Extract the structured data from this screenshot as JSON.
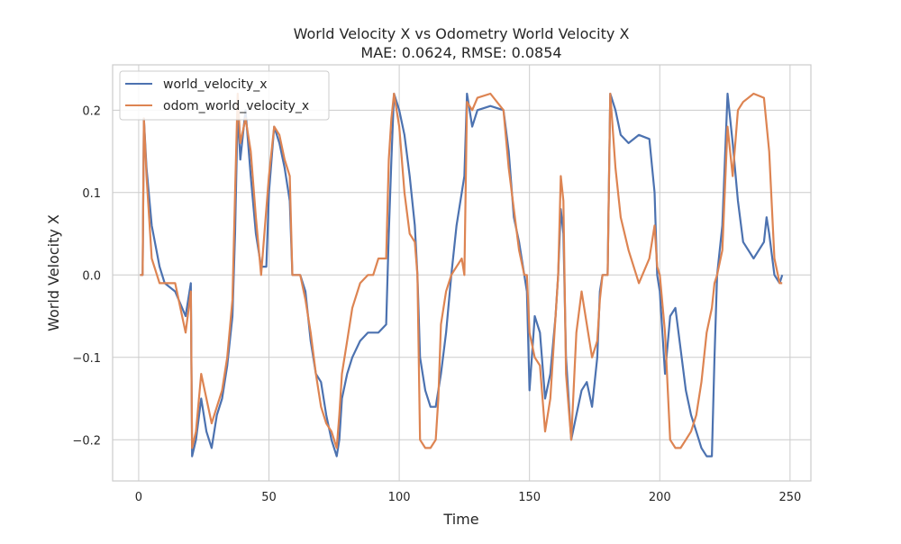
{
  "chart_data": {
    "type": "line",
    "title": "World Velocity X vs Odometry World Velocity X",
    "subtitle": "MAE: 0.0624, RMSE: 0.0854",
    "xlabel": "Time",
    "ylabel": "World Velocity X",
    "xlim": [
      -10,
      258
    ],
    "ylim": [
      -0.25,
      0.255
    ],
    "xticks": [
      0,
      50,
      100,
      150,
      200,
      250
    ],
    "xtick_labels": [
      "0",
      "50",
      "100",
      "150",
      "200",
      "250"
    ],
    "yticks": [
      -0.2,
      -0.1,
      0.0,
      0.1,
      0.2
    ],
    "ytick_labels": [
      "−0.2",
      "−0.1",
      "0.0",
      "0.1",
      "0.2"
    ],
    "grid": true,
    "legend_position": "top-left",
    "series": [
      {
        "name": "world_velocity_x",
        "color": "#4c72b0",
        "points": [
          [
            0.5,
            0.0
          ],
          [
            1.5,
            0.0
          ],
          [
            2,
            0.19
          ],
          [
            3,
            0.13
          ],
          [
            5,
            0.06
          ],
          [
            8,
            0.01
          ],
          [
            10,
            -0.01
          ],
          [
            14,
            -0.02
          ],
          [
            18,
            -0.05
          ],
          [
            20,
            -0.01
          ],
          [
            20.5,
            -0.22
          ],
          [
            22,
            -0.2
          ],
          [
            24,
            -0.15
          ],
          [
            26,
            -0.19
          ],
          [
            28,
            -0.21
          ],
          [
            30,
            -0.17
          ],
          [
            32,
            -0.15
          ],
          [
            34,
            -0.11
          ],
          [
            36,
            -0.05
          ],
          [
            37,
            0.05
          ],
          [
            38,
            0.2
          ],
          [
            39,
            0.14
          ],
          [
            41,
            0.2
          ],
          [
            43,
            0.12
          ],
          [
            45,
            0.05
          ],
          [
            47,
            0.01
          ],
          [
            49,
            0.01
          ],
          [
            50,
            0.1
          ],
          [
            52,
            0.18
          ],
          [
            54,
            0.16
          ],
          [
            56,
            0.13
          ],
          [
            58,
            0.09
          ],
          [
            59,
            0.0
          ],
          [
            62,
            0.0
          ],
          [
            64,
            -0.02
          ],
          [
            66,
            -0.08
          ],
          [
            68,
            -0.12
          ],
          [
            70,
            -0.13
          ],
          [
            72,
            -0.17
          ],
          [
            74,
            -0.2
          ],
          [
            76,
            -0.22
          ],
          [
            77,
            -0.2
          ],
          [
            78,
            -0.15
          ],
          [
            80,
            -0.12
          ],
          [
            82,
            -0.1
          ],
          [
            85,
            -0.08
          ],
          [
            88,
            -0.07
          ],
          [
            92,
            -0.07
          ],
          [
            95,
            -0.06
          ],
          [
            96,
            0.05
          ],
          [
            97,
            0.14
          ],
          [
            98,
            0.22
          ],
          [
            100,
            0.2
          ],
          [
            102,
            0.17
          ],
          [
            104,
            0.12
          ],
          [
            106,
            0.06
          ],
          [
            107,
            0.0
          ],
          [
            108,
            -0.1
          ],
          [
            110,
            -0.14
          ],
          [
            112,
            -0.16
          ],
          [
            114,
            -0.16
          ],
          [
            116,
            -0.12
          ],
          [
            118,
            -0.07
          ],
          [
            120,
            0.0
          ],
          [
            122,
            0.06
          ],
          [
            124,
            0.1
          ],
          [
            125,
            0.12
          ],
          [
            126,
            0.22
          ],
          [
            128,
            0.18
          ],
          [
            130,
            0.2
          ],
          [
            135,
            0.205
          ],
          [
            140,
            0.2
          ],
          [
            142,
            0.15
          ],
          [
            144,
            0.07
          ],
          [
            146,
            0.04
          ],
          [
            148,
            0.0
          ],
          [
            149,
            -0.02
          ],
          [
            150,
            -0.14
          ],
          [
            152,
            -0.05
          ],
          [
            154,
            -0.07
          ],
          [
            156,
            -0.15
          ],
          [
            158,
            -0.12
          ],
          [
            160,
            -0.05
          ],
          [
            161,
            0.0
          ],
          [
            162,
            0.08
          ],
          [
            163,
            0.05
          ],
          [
            164,
            -0.1
          ],
          [
            166,
            -0.2
          ],
          [
            168,
            -0.17
          ],
          [
            170,
            -0.14
          ],
          [
            172,
            -0.13
          ],
          [
            174,
            -0.16
          ],
          [
            176,
            -0.1
          ],
          [
            177,
            -0.02
          ],
          [
            178,
            0.0
          ],
          [
            180,
            0.0
          ],
          [
            181,
            0.22
          ],
          [
            183,
            0.2
          ],
          [
            185,
            0.17
          ],
          [
            188,
            0.16
          ],
          [
            192,
            0.17
          ],
          [
            196,
            0.165
          ],
          [
            198,
            0.1
          ],
          [
            199,
            0.0
          ],
          [
            200,
            -0.02
          ],
          [
            202,
            -0.12
          ],
          [
            204,
            -0.05
          ],
          [
            206,
            -0.04
          ],
          [
            208,
            -0.09
          ],
          [
            210,
            -0.14
          ],
          [
            212,
            -0.17
          ],
          [
            214,
            -0.19
          ],
          [
            216,
            -0.21
          ],
          [
            218,
            -0.22
          ],
          [
            220,
            -0.22
          ],
          [
            221,
            -0.1
          ],
          [
            222,
            0.0
          ],
          [
            224,
            0.06
          ],
          [
            226,
            0.22
          ],
          [
            228,
            0.16
          ],
          [
            230,
            0.09
          ],
          [
            232,
            0.04
          ],
          [
            234,
            0.03
          ],
          [
            236,
            0.02
          ],
          [
            238,
            0.03
          ],
          [
            240,
            0.04
          ],
          [
            241,
            0.07
          ],
          [
            242,
            0.05
          ],
          [
            244,
            0.0
          ],
          [
            246,
            -0.01
          ],
          [
            247,
            0.0
          ]
        ]
      },
      {
        "name": "odom_world_velocity_x",
        "color": "#dd8452",
        "points": [
          [
            0.5,
            0.0
          ],
          [
            1.5,
            0.0
          ],
          [
            2,
            0.19
          ],
          [
            3,
            0.12
          ],
          [
            5,
            0.02
          ],
          [
            8,
            -0.01
          ],
          [
            10,
            -0.01
          ],
          [
            14,
            -0.01
          ],
          [
            18,
            -0.07
          ],
          [
            20,
            -0.02
          ],
          [
            20.5,
            -0.21
          ],
          [
            22,
            -0.19
          ],
          [
            24,
            -0.12
          ],
          [
            26,
            -0.15
          ],
          [
            28,
            -0.18
          ],
          [
            30,
            -0.16
          ],
          [
            32,
            -0.14
          ],
          [
            34,
            -0.1
          ],
          [
            36,
            -0.03
          ],
          [
            37,
            0.1
          ],
          [
            38,
            0.22
          ],
          [
            39,
            0.16
          ],
          [
            41,
            0.19
          ],
          [
            43,
            0.15
          ],
          [
            45,
            0.07
          ],
          [
            47,
            0.0
          ],
          [
            50,
            0.12
          ],
          [
            52,
            0.18
          ],
          [
            54,
            0.17
          ],
          [
            56,
            0.14
          ],
          [
            58,
            0.12
          ],
          [
            59,
            0.0
          ],
          [
            62,
            0.0
          ],
          [
            64,
            -0.03
          ],
          [
            66,
            -0.07
          ],
          [
            68,
            -0.12
          ],
          [
            70,
            -0.16
          ],
          [
            72,
            -0.18
          ],
          [
            74,
            -0.19
          ],
          [
            76,
            -0.21
          ],
          [
            77,
            -0.17
          ],
          [
            78,
            -0.12
          ],
          [
            80,
            -0.08
          ],
          [
            82,
            -0.04
          ],
          [
            85,
            -0.01
          ],
          [
            88,
            0.0
          ],
          [
            90,
            0.0
          ],
          [
            92,
            0.02
          ],
          [
            95,
            0.02
          ],
          [
            96,
            0.14
          ],
          [
            97,
            0.19
          ],
          [
            98,
            0.22
          ],
          [
            100,
            0.18
          ],
          [
            102,
            0.1
          ],
          [
            104,
            0.05
          ],
          [
            106,
            0.04
          ],
          [
            107,
            0.0
          ],
          [
            108,
            -0.2
          ],
          [
            110,
            -0.21
          ],
          [
            112,
            -0.21
          ],
          [
            114,
            -0.2
          ],
          [
            115,
            -0.15
          ],
          [
            116,
            -0.06
          ],
          [
            118,
            -0.02
          ],
          [
            120,
            0.0
          ],
          [
            122,
            0.01
          ],
          [
            124,
            0.02
          ],
          [
            125,
            0.0
          ],
          [
            126,
            0.21
          ],
          [
            128,
            0.2
          ],
          [
            130,
            0.215
          ],
          [
            135,
            0.22
          ],
          [
            140,
            0.2
          ],
          [
            142,
            0.13
          ],
          [
            144,
            0.08
          ],
          [
            146,
            0.03
          ],
          [
            148,
            0.0
          ],
          [
            149,
            0.0
          ],
          [
            150,
            -0.07
          ],
          [
            152,
            -0.1
          ],
          [
            154,
            -0.11
          ],
          [
            156,
            -0.19
          ],
          [
            158,
            -0.15
          ],
          [
            160,
            -0.05
          ],
          [
            161,
            0.0
          ],
          [
            162,
            0.12
          ],
          [
            163,
            0.09
          ],
          [
            164,
            -0.12
          ],
          [
            166,
            -0.2
          ],
          [
            168,
            -0.07
          ],
          [
            170,
            -0.02
          ],
          [
            172,
            -0.06
          ],
          [
            174,
            -0.1
          ],
          [
            176,
            -0.08
          ],
          [
            177,
            -0.03
          ],
          [
            178,
            0.0
          ],
          [
            180,
            0.0
          ],
          [
            181,
            0.22
          ],
          [
            183,
            0.13
          ],
          [
            185,
            0.07
          ],
          [
            188,
            0.03
          ],
          [
            192,
            -0.01
          ],
          [
            196,
            0.02
          ],
          [
            198,
            0.06
          ],
          [
            199,
            0.01
          ],
          [
            200,
            0.0
          ],
          [
            202,
            -0.07
          ],
          [
            204,
            -0.2
          ],
          [
            206,
            -0.21
          ],
          [
            208,
            -0.21
          ],
          [
            210,
            -0.2
          ],
          [
            212,
            -0.19
          ],
          [
            214,
            -0.17
          ],
          [
            216,
            -0.13
          ],
          [
            218,
            -0.07
          ],
          [
            220,
            -0.04
          ],
          [
            221,
            -0.01
          ],
          [
            222,
            0.0
          ],
          [
            224,
            0.03
          ],
          [
            226,
            0.18
          ],
          [
            228,
            0.12
          ],
          [
            230,
            0.2
          ],
          [
            232,
            0.21
          ],
          [
            236,
            0.22
          ],
          [
            240,
            0.215
          ],
          [
            242,
            0.15
          ],
          [
            244,
            0.02
          ],
          [
            246,
            -0.01
          ],
          [
            247,
            -0.01
          ]
        ]
      }
    ]
  }
}
